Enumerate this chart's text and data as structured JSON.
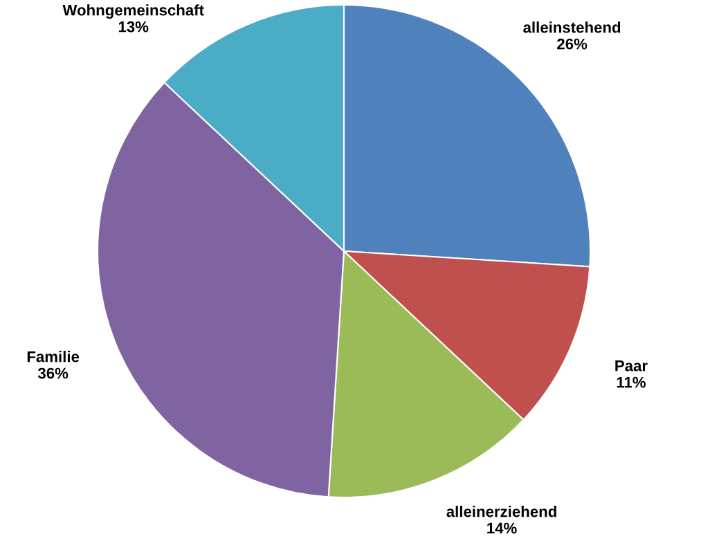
{
  "chart_data": {
    "type": "pie",
    "categories": [
      "alleinstehend",
      "Paar",
      "alleinerziehend",
      "Familie",
      "Wohngemeinschaft"
    ],
    "values": [
      26,
      11,
      14,
      36,
      13
    ],
    "colors": [
      "#4f81bd",
      "#c0504d",
      "#9bbb59",
      "#8064a2",
      "#4bacc6"
    ],
    "value_labels": [
      "26%",
      "11%",
      "14%",
      "36%",
      "13%"
    ]
  }
}
